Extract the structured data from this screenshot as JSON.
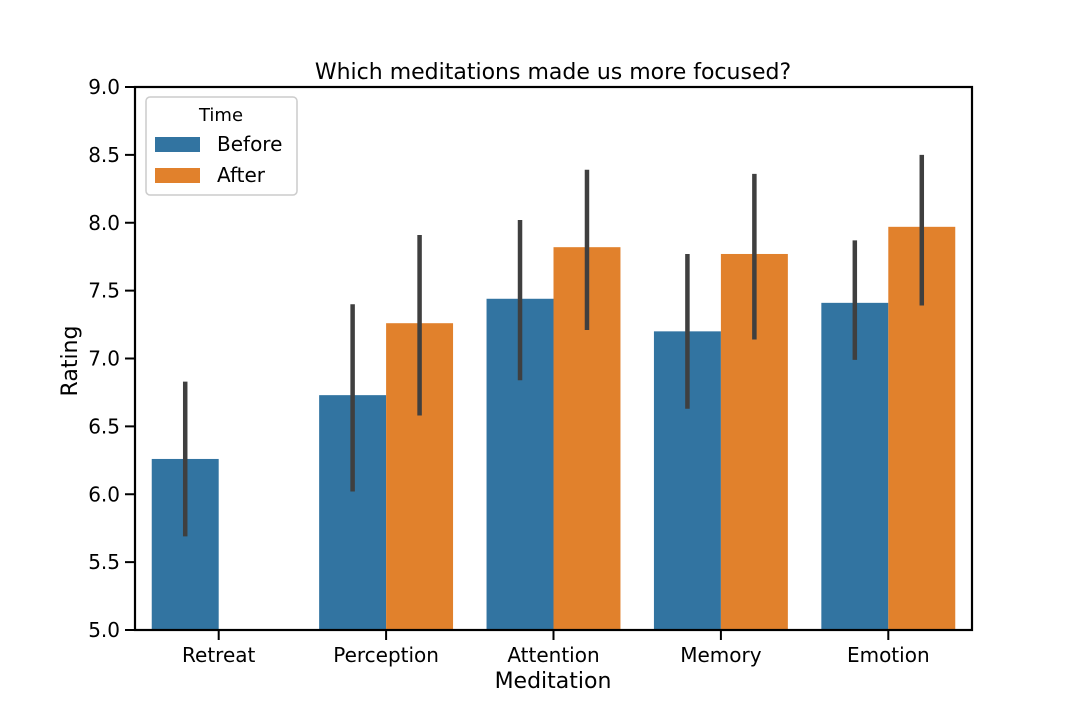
{
  "chart_data": {
    "type": "bar",
    "title": "Which meditations made us more focused?",
    "xlabel": "Meditation",
    "ylabel": "Rating",
    "categories": [
      "Retreat",
      "Perception",
      "Attention",
      "Memory",
      "Emotion"
    ],
    "ylim": [
      5.0,
      9.0
    ],
    "yticks": [
      "5.0",
      "5.5",
      "6.0",
      "6.5",
      "7.0",
      "7.5",
      "8.0",
      "8.5",
      "9.0"
    ],
    "grid": false,
    "legend": {
      "title": "Time",
      "placement": "upper left"
    },
    "series": [
      {
        "name": "Before",
        "color": "#3274a1",
        "values": [
          6.26,
          6.73,
          7.44,
          7.2,
          7.41
        ],
        "ci": [
          [
            5.69,
            6.83
          ],
          [
            6.02,
            7.4
          ],
          [
            6.84,
            8.02
          ],
          [
            6.63,
            7.77
          ],
          [
            6.99,
            7.87
          ]
        ]
      },
      {
        "name": "After",
        "color": "#e1812c",
        "values": [
          null,
          7.26,
          7.82,
          7.77,
          7.97
        ],
        "ci": [
          null,
          [
            6.58,
            7.91
          ],
          [
            7.21,
            8.39
          ],
          [
            7.14,
            8.36
          ],
          [
            7.39,
            8.5
          ]
        ]
      }
    ],
    "errorbar_color": "#3f3f3f"
  }
}
